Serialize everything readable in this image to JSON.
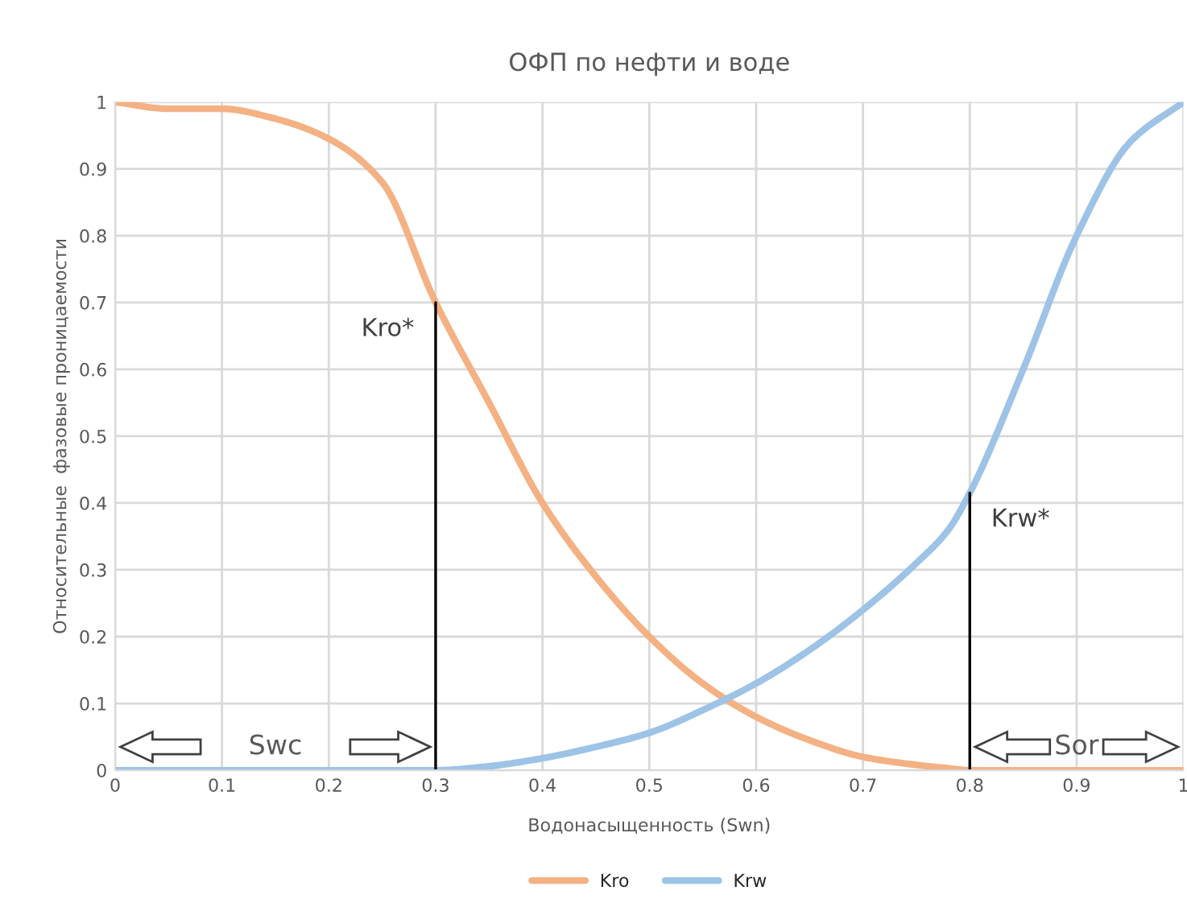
{
  "chart_data": {
    "type": "line",
    "title": "ОФП по нефти и воде",
    "xlabel": "Водонасыщенность (Swn)",
    "ylabel": "Относительные  фазовые проницаемости",
    "x": [
      0,
      0.05,
      0.1,
      0.15,
      0.2,
      0.25,
      0.3,
      0.35,
      0.4,
      0.45,
      0.5,
      0.55,
      0.6,
      0.65,
      0.7,
      0.75,
      0.78,
      0.8,
      0.85,
      0.9,
      0.95,
      1
    ],
    "series": [
      {
        "name": "Kro",
        "color": "#f4b183",
        "values": [
          1,
          0.99,
          0.99,
          0.975,
          0.945,
          0.88,
          0.7,
          0.55,
          0.4,
          0.29,
          0.2,
          0.13,
          0.08,
          0.045,
          0.02,
          0.008,
          0.003,
          0,
          0,
          0,
          0,
          0
        ]
      },
      {
        "name": "Krw",
        "color": "#9dc3e6",
        "values": [
          0,
          0,
          0,
          0,
          0,
          0,
          0,
          0.006,
          0.018,
          0.035,
          0.056,
          0.09,
          0.13,
          0.18,
          0.24,
          0.31,
          0.36,
          0.415,
          0.6,
          0.8,
          0.94,
          1
        ]
      }
    ],
    "xlim": [
      0,
      1
    ],
    "ylim": [
      0,
      1
    ],
    "xticks": [
      0,
      0.1,
      0.2,
      0.3,
      0.4,
      0.5,
      0.6,
      0.7,
      0.8,
      0.9,
      1
    ],
    "yticks": [
      0,
      0.1,
      0.2,
      0.3,
      0.4,
      0.5,
      0.6,
      0.7,
      0.8,
      0.9,
      1
    ],
    "annotations": [
      {
        "text": "Kro*",
        "x": 0.3,
        "y": 0.7
      },
      {
        "text": "Krw*",
        "x": 0.8,
        "y": 0.415
      },
      "Swc",
      "Sor"
    ],
    "grid": true,
    "legend": "bottom",
    "marker": "none",
    "line_style": "solid"
  }
}
